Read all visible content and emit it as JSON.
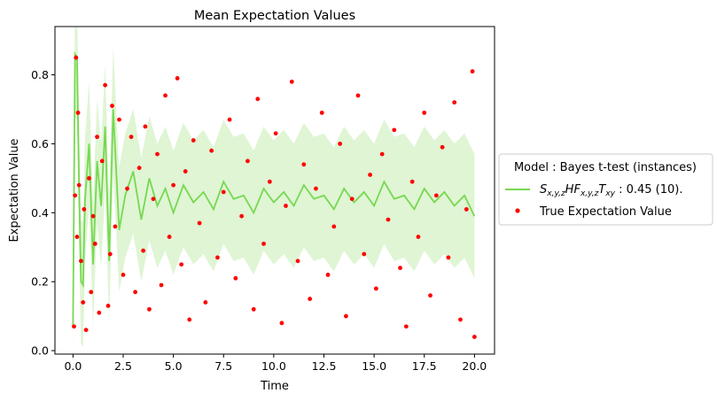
{
  "chart_data": {
    "type": "line",
    "title": "Mean Expectation Values",
    "xlabel": "Time",
    "ylabel": "Expectation Value",
    "xlim": [
      -0.9,
      21.0
    ],
    "ylim": [
      -0.01,
      0.94
    ],
    "xticks": [
      "0.0",
      "2.5",
      "5.0",
      "7.5",
      "10.0",
      "12.5",
      "15.0",
      "17.5",
      "20.0"
    ],
    "yticks": [
      "0.0",
      "0.2",
      "0.4",
      "0.6",
      "0.8"
    ],
    "grid": false,
    "legend": {
      "placement": "center-right outside",
      "title": "Model : Bayes t-test (instances)",
      "model_label_math": [
        "S",
        "x,y,z",
        "HF",
        "x,y,z",
        "T",
        "xy"
      ],
      "model_label_suffix": " : 0.45 (10).",
      "points_label": "True Expectation Value"
    },
    "series": [
      {
        "kind": "line",
        "color": "#77d851",
        "band_color": "#dff5d4",
        "x": [
          0.0,
          0.1,
          0.2,
          0.3,
          0.4,
          0.5,
          0.6,
          0.8,
          1.0,
          1.2,
          1.4,
          1.6,
          1.8,
          2.0,
          2.3,
          2.6,
          3.0,
          3.4,
          3.8,
          4.2,
          4.6,
          5.0,
          5.5,
          6.0,
          6.5,
          7.0,
          7.5,
          8.0,
          8.5,
          9.0,
          9.5,
          10.0,
          10.5,
          11.0,
          11.5,
          12.0,
          12.5,
          13.0,
          13.5,
          14.0,
          14.5,
          15.0,
          15.5,
          16.0,
          16.5,
          17.0,
          17.5,
          18.0,
          18.5,
          19.0,
          19.5,
          20.0
        ],
        "y": [
          0.07,
          0.86,
          0.85,
          0.48,
          0.2,
          0.19,
          0.44,
          0.6,
          0.25,
          0.55,
          0.42,
          0.65,
          0.26,
          0.7,
          0.35,
          0.45,
          0.52,
          0.38,
          0.5,
          0.42,
          0.47,
          0.4,
          0.48,
          0.43,
          0.46,
          0.41,
          0.49,
          0.44,
          0.45,
          0.4,
          0.47,
          0.43,
          0.46,
          0.42,
          0.48,
          0.44,
          0.45,
          0.41,
          0.47,
          0.43,
          0.46,
          0.42,
          0.49,
          0.44,
          0.45,
          0.41,
          0.47,
          0.43,
          0.46,
          0.42,
          0.45,
          0.39
        ],
        "band_half_width": 0.18
      },
      {
        "kind": "scatter",
        "color": "#ff0000",
        "x": [
          0.05,
          0.1,
          0.15,
          0.2,
          0.25,
          0.3,
          0.4,
          0.5,
          0.55,
          0.65,
          0.8,
          0.9,
          1.0,
          1.1,
          1.2,
          1.3,
          1.45,
          1.6,
          1.75,
          1.85,
          1.95,
          2.1,
          2.3,
          2.5,
          2.7,
          2.9,
          3.1,
          3.3,
          3.5,
          3.6,
          3.8,
          4.0,
          4.2,
          4.4,
          4.6,
          4.8,
          5.0,
          5.2,
          5.4,
          5.6,
          5.8,
          6.0,
          6.3,
          6.6,
          6.9,
          7.2,
          7.5,
          7.8,
          8.1,
          8.4,
          8.7,
          9.0,
          9.2,
          9.5,
          9.8,
          10.1,
          10.4,
          10.6,
          10.9,
          11.2,
          11.5,
          11.8,
          12.1,
          12.4,
          12.7,
          13.0,
          13.3,
          13.6,
          13.9,
          14.2,
          14.5,
          14.8,
          15.1,
          15.4,
          15.7,
          16.0,
          16.3,
          16.6,
          16.9,
          17.2,
          17.5,
          17.8,
          18.1,
          18.4,
          18.7,
          19.0,
          19.3,
          19.6,
          19.9,
          20.0
        ],
        "y": [
          0.07,
          0.45,
          0.85,
          0.33,
          0.69,
          0.48,
          0.26,
          0.14,
          0.41,
          0.06,
          0.5,
          0.17,
          0.39,
          0.31,
          0.62,
          0.11,
          0.55,
          0.77,
          0.13,
          0.28,
          0.71,
          0.36,
          0.67,
          0.22,
          0.47,
          0.62,
          0.17,
          0.53,
          0.29,
          0.65,
          0.12,
          0.44,
          0.57,
          0.19,
          0.74,
          0.33,
          0.48,
          0.79,
          0.25,
          0.52,
          0.09,
          0.61,
          0.37,
          0.14,
          0.58,
          0.27,
          0.46,
          0.67,
          0.21,
          0.39,
          0.55,
          0.12,
          0.73,
          0.31,
          0.49,
          0.63,
          0.08,
          0.42,
          0.78,
          0.26,
          0.54,
          0.15,
          0.47,
          0.69,
          0.22,
          0.36,
          0.6,
          0.1,
          0.44,
          0.74,
          0.28,
          0.51,
          0.18,
          0.57,
          0.38,
          0.64,
          0.24,
          0.07,
          0.49,
          0.33,
          0.69,
          0.16,
          0.45,
          0.59,
          0.27,
          0.72,
          0.09,
          0.41,
          0.81,
          0.04
        ]
      }
    ]
  }
}
